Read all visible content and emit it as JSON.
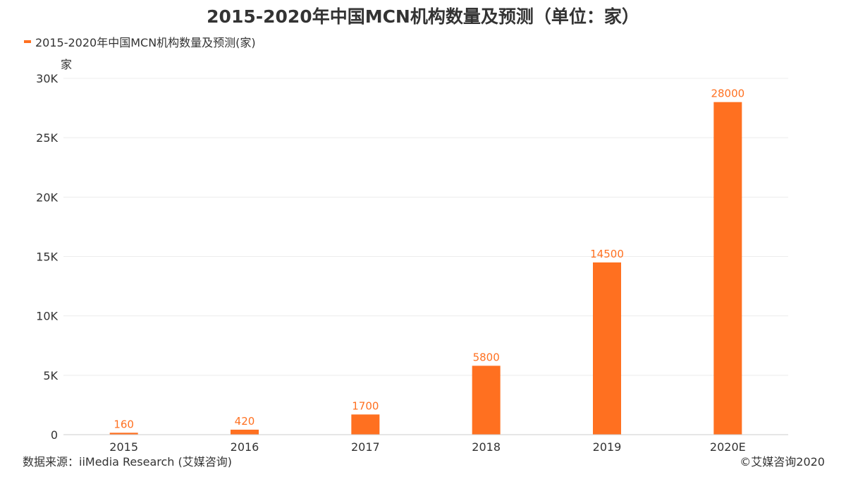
{
  "chart_data": {
    "type": "bar",
    "title": "2015-2020年中国MCN机构数量及预测（单位：家）",
    "legend": {
      "position": "top-left"
    },
    "ylabel": "家",
    "xlabel": "",
    "categories": [
      "2015",
      "2016",
      "2017",
      "2018",
      "2019",
      "2020E"
    ],
    "series": [
      {
        "name": "2015-2020年中国MCN机构数量及预测(家)",
        "values": [
          160,
          420,
          1700,
          5800,
          14500,
          28000
        ],
        "color": "#FF7020"
      }
    ],
    "ylim": [
      0,
      30000
    ],
    "yticks": [
      0,
      5000,
      10000,
      15000,
      20000,
      25000,
      30000
    ],
    "ytick_labels": [
      "0",
      "5K",
      "10K",
      "15K",
      "20K",
      "25K",
      "30K"
    ],
    "grid": true,
    "data_labels": true
  },
  "footer": {
    "source": "数据来源：iiMedia Research (艾媒咨询)",
    "copyright": "©艾媒咨询2020"
  }
}
